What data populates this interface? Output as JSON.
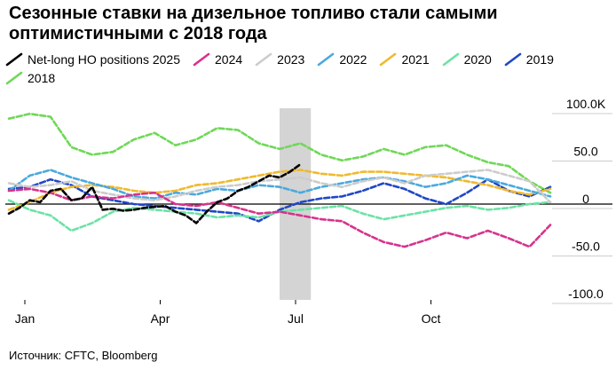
{
  "chart_data": {
    "type": "line",
    "title": "Сезонные ставки на дизельное топливо стали самыми оптимистичными с 2018 года",
    "source": "Источник: CFTC, Bloomberg",
    "x_tick_labels": [
      "Jan",
      "Apr",
      "Jul",
      "Oct"
    ],
    "x_tick_weeks": [
      0,
      13,
      26,
      39
    ],
    "y_tick_labels": [
      "100.0K",
      "50.0",
      "0",
      "-50.0",
      "-100.0"
    ],
    "y_tick_values": [
      100,
      50,
      0,
      -50,
      -100
    ],
    "ylim": [
      -100,
      100
    ],
    "xlim": [
      0,
      52
    ],
    "highlight_weeks": [
      26,
      29
    ],
    "series": [
      {
        "name": "Net-long HO positions 2025",
        "color": "#000000",
        "dashed": true,
        "width": 2.6,
        "x": [
          0,
          1,
          2,
          3,
          4,
          5,
          6,
          7,
          8,
          9,
          10,
          11,
          12,
          13,
          14,
          15,
          16,
          17,
          18,
          19,
          20,
          21,
          22,
          23,
          24,
          25,
          26,
          27,
          28
        ],
        "y": [
          -10,
          -4,
          4,
          2,
          14,
          16,
          4,
          6,
          18,
          -6,
          -5,
          -7,
          -6,
          -4,
          -3,
          -2,
          -8,
          -12,
          -20,
          -8,
          2,
          6,
          14,
          18,
          24,
          30,
          28,
          34,
          42
        ]
      },
      {
        "name": "2024",
        "color": "#d6338c",
        "dashed": true,
        "width": 2.6,
        "x": [
          0,
          2,
          4,
          6,
          8,
          10,
          12,
          14,
          16,
          18,
          20,
          22,
          24,
          26,
          28,
          30,
          32,
          34,
          36,
          38,
          40,
          42,
          44,
          46,
          48,
          50,
          52
        ],
        "y": [
          14,
          16,
          12,
          4,
          8,
          6,
          10,
          12,
          0,
          -2,
          2,
          -4,
          -10,
          -8,
          -12,
          -16,
          -18,
          -30,
          -40,
          -45,
          -38,
          -30,
          -36,
          -28,
          -36,
          -45,
          -22
        ]
      },
      {
        "name": "2023",
        "color": "#cccccc",
        "dashed": true,
        "width": 2.6,
        "x": [
          0,
          2,
          4,
          6,
          8,
          10,
          12,
          14,
          16,
          18,
          20,
          22,
          24,
          26,
          28,
          30,
          32,
          34,
          36,
          38,
          40,
          42,
          44,
          46,
          48,
          50,
          52
        ],
        "y": [
          22,
          18,
          20,
          24,
          14,
          10,
          6,
          4,
          8,
          14,
          18,
          20,
          24,
          26,
          28,
          22,
          18,
          24,
          28,
          22,
          30,
          32,
          34,
          36,
          30,
          24,
          2
        ]
      },
      {
        "name": "2022",
        "color": "#4aa9de",
        "dashed": true,
        "width": 2.6,
        "x": [
          0,
          2,
          4,
          6,
          8,
          10,
          12,
          14,
          16,
          18,
          20,
          22,
          24,
          26,
          28,
          30,
          32,
          34,
          36,
          38,
          40,
          42,
          44,
          46,
          48,
          50,
          52
        ],
        "y": [
          14,
          30,
          36,
          28,
          22,
          16,
          8,
          6,
          12,
          10,
          16,
          14,
          20,
          18,
          12,
          18,
          22,
          26,
          28,
          24,
          18,
          22,
          30,
          26,
          20,
          14,
          8
        ]
      },
      {
        "name": "2021",
        "color": "#f0b92e",
        "dashed": true,
        "width": 2.6,
        "x": [
          0,
          2,
          4,
          6,
          8,
          10,
          12,
          14,
          16,
          18,
          20,
          22,
          24,
          26,
          28,
          30,
          32,
          34,
          36,
          38,
          40,
          42,
          44,
          46,
          48,
          50,
          52
        ],
        "y": [
          -6,
          2,
          12,
          18,
          20,
          18,
          14,
          12,
          14,
          20,
          22,
          26,
          30,
          34,
          36,
          32,
          30,
          34,
          34,
          32,
          30,
          28,
          24,
          20,
          14,
          10,
          16
        ]
      },
      {
        "name": "2020",
        "color": "#6be3a6",
        "dashed": true,
        "width": 2.6,
        "x": [
          0,
          2,
          4,
          6,
          8,
          10,
          12,
          14,
          16,
          18,
          20,
          22,
          24,
          26,
          28,
          30,
          32,
          34,
          36,
          38,
          40,
          42,
          44,
          46,
          48,
          50,
          52
        ],
        "y": [
          4,
          -6,
          -12,
          -28,
          -20,
          -8,
          -4,
          -6,
          -8,
          -10,
          -14,
          -12,
          -14,
          -8,
          -6,
          -4,
          -2,
          -10,
          -16,
          -12,
          -8,
          -4,
          -2,
          -6,
          -4,
          0,
          2
        ]
      },
      {
        "name": "2019",
        "color": "#1f47c6",
        "dashed": true,
        "width": 2.6,
        "x": [
          0,
          2,
          4,
          6,
          8,
          10,
          12,
          14,
          16,
          18,
          20,
          22,
          24,
          26,
          28,
          30,
          32,
          34,
          36,
          38,
          40,
          42,
          44,
          46,
          48,
          50,
          52
        ],
        "y": [
          16,
          18,
          26,
          20,
          8,
          4,
          0,
          -2,
          -4,
          -6,
          -8,
          -10,
          -18,
          -6,
          2,
          6,
          8,
          14,
          22,
          16,
          6,
          0,
          12,
          26,
          14,
          8,
          18
        ]
      },
      {
        "name": "2018",
        "color": "#6ed956",
        "dashed": true,
        "width": 2.6,
        "x": [
          0,
          2,
          4,
          6,
          8,
          10,
          12,
          14,
          16,
          18,
          20,
          22,
          24,
          26,
          28,
          30,
          32,
          34,
          36,
          38,
          40,
          42,
          44,
          46,
          48,
          50,
          52
        ],
        "y": [
          90,
          95,
          92,
          60,
          52,
          55,
          68,
          75,
          62,
          68,
          80,
          78,
          64,
          58,
          64,
          52,
          46,
          50,
          58,
          52,
          60,
          62,
          52,
          44,
          40,
          24,
          12
        ]
      }
    ]
  }
}
